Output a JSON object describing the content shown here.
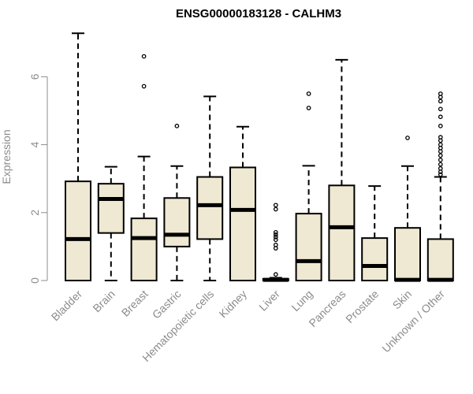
{
  "chart_data": {
    "type": "boxplot",
    "title": "ENSG00000183128 - CALHM3",
    "ylabel": "Expression",
    "xlabel": "",
    "ylim": [
      0,
      7.3
    ],
    "yticks": [
      0,
      2,
      4,
      6
    ],
    "box_fill": "#efe8d2",
    "grid": false,
    "categories": [
      "Bladder",
      "Brain",
      "Breast",
      "Gastric",
      "Hematopoietic cells",
      "Kidney",
      "Liver",
      "Lung",
      "Pancreas",
      "Prostate",
      "Skin",
      "Unknown / Other"
    ],
    "boxes": [
      {
        "category": "Bladder",
        "whisker_low": 0,
        "q1": 0,
        "median": 1.22,
        "q3": 2.92,
        "whisker_high": 7.28,
        "outliers": []
      },
      {
        "category": "Brain",
        "whisker_low": 0,
        "q1": 1.4,
        "median": 2.4,
        "q3": 2.85,
        "whisker_high": 3.35,
        "outliers": []
      },
      {
        "category": "Breast",
        "whisker_low": 0,
        "q1": 0,
        "median": 1.25,
        "q3": 1.83,
        "whisker_high": 3.65,
        "outliers": [
          5.72,
          6.6
        ]
      },
      {
        "category": "Gastric",
        "whisker_low": 0,
        "q1": 1.0,
        "median": 1.35,
        "q3": 2.43,
        "whisker_high": 3.37,
        "outliers": [
          4.55
        ]
      },
      {
        "category": "Hematopoietic cells",
        "whisker_low": 0,
        "q1": 1.22,
        "median": 2.22,
        "q3": 3.05,
        "whisker_high": 5.42,
        "outliers": []
      },
      {
        "category": "Kidney",
        "whisker_low": 0,
        "q1": 0,
        "median": 2.08,
        "q3": 3.33,
        "whisker_high": 4.53,
        "outliers": []
      },
      {
        "category": "Liver",
        "whisker_low": 0,
        "q1": 0,
        "median": 0.02,
        "q3": 0.05,
        "whisker_high": 0.08,
        "outliers": [
          0.18,
          0.95,
          1.05,
          1.2,
          1.28,
          1.35,
          1.42,
          2.1,
          2.22
        ]
      },
      {
        "category": "Lung",
        "whisker_low": 0,
        "q1": 0,
        "median": 0.57,
        "q3": 1.97,
        "whisker_high": 3.38,
        "outliers": [
          5.08,
          5.5
        ]
      },
      {
        "category": "Pancreas",
        "whisker_low": 0,
        "q1": 0,
        "median": 1.57,
        "q3": 2.8,
        "whisker_high": 6.5,
        "outliers": []
      },
      {
        "category": "Prostate",
        "whisker_low": 0,
        "q1": 0,
        "median": 0.43,
        "q3": 1.25,
        "whisker_high": 2.78,
        "outliers": []
      },
      {
        "category": "Skin",
        "whisker_low": 0,
        "q1": 0,
        "median": 0.02,
        "q3": 1.55,
        "whisker_high": 3.37,
        "outliers": [
          4.2
        ]
      },
      {
        "category": "Unknown / Other",
        "whisker_low": 0,
        "q1": 0,
        "median": 0.02,
        "q3": 1.22,
        "whisker_high": 3.05,
        "outliers": [
          3.12,
          3.2,
          3.3,
          3.42,
          3.55,
          3.68,
          3.8,
          3.9,
          4.0,
          4.12,
          4.22,
          4.55,
          4.82,
          5.05,
          5.28,
          5.4,
          5.5
        ]
      }
    ]
  }
}
